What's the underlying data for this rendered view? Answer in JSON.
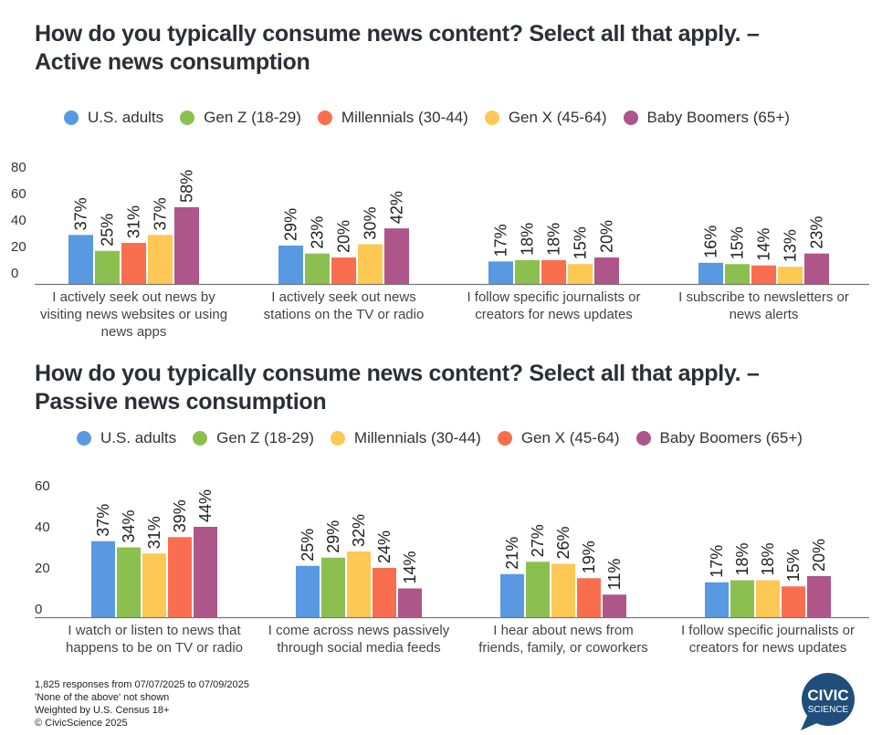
{
  "chart_data": [
    {
      "type": "bar",
      "title": "How do you typically consume news content? Select all that apply. – Active news consumption",
      "title_lines": [
        "How do you typically consume news content? Select all that apply. –",
        "Active news consumption"
      ],
      "xlabel": "",
      "ylabel": "",
      "ylim": [
        0,
        80
      ],
      "yticks": [
        0,
        20,
        40,
        60,
        80
      ],
      "grid": false,
      "legend_position": "top-center",
      "categories": [
        [
          "I actively seek out news by",
          "visiting news websites or using",
          "news apps"
        ],
        [
          "I actively seek out news",
          "stations on the TV or radio"
        ],
        [
          "I follow specific journalists or",
          "creators for news updates"
        ],
        [
          "I subscribe to newsletters or",
          "news alerts"
        ]
      ],
      "series": [
        {
          "name": "U.S. adults",
          "color": "#5899e2",
          "values": [
            37,
            29,
            17,
            16
          ]
        },
        {
          "name": "Gen Z (18-29)",
          "color": "#8bc050",
          "values": [
            25,
            23,
            18,
            15
          ]
        },
        {
          "name": "Millennials (30-44)",
          "color": "#fa6e50",
          "values": [
            31,
            20,
            18,
            14
          ]
        },
        {
          "name": "Gen X (45-64)",
          "color": "#fdc853",
          "values": [
            37,
            30,
            15,
            13
          ]
        },
        {
          "name": "Baby Boomers (65+)",
          "color": "#ae5589",
          "values": [
            58,
            42,
            20,
            23
          ]
        }
      ],
      "value_suffix": "%"
    },
    {
      "type": "bar",
      "title": "How do you typically consume news content? Select all that apply. – Passive news consumption",
      "title_lines": [
        "How do you typically consume news content? Select all that apply. –",
        "Passive news consumption"
      ],
      "xlabel": "",
      "ylabel": "",
      "ylim": [
        0,
        60
      ],
      "yticks": [
        0,
        20,
        40,
        60
      ],
      "grid": false,
      "legend_position": "top-center",
      "categories": [
        [
          "I watch or listen to news that",
          "happens to be on TV or radio"
        ],
        [
          "I come across news passively",
          "through social media feeds"
        ],
        [
          "I hear about news from",
          "friends, family, or coworkers"
        ],
        [
          "I follow specific journalists or",
          "creators for news updates"
        ]
      ],
      "series": [
        {
          "name": "U.S. adults",
          "color": "#5899e2",
          "values": [
            37,
            25,
            21,
            17
          ]
        },
        {
          "name": "Gen Z (18-29)",
          "color": "#8bc050",
          "values": [
            34,
            29,
            27,
            18
          ]
        },
        {
          "name": "Millennials (30-44)",
          "color": "#fdc853",
          "values": [
            31,
            32,
            26,
            18
          ]
        },
        {
          "name": "Gen X (45-64)",
          "color": "#fa6e50",
          "values": [
            39,
            24,
            19,
            15
          ]
        },
        {
          "name": "Baby Boomers (65+)",
          "color": "#ae5589",
          "values": [
            44,
            14,
            11,
            20
          ]
        }
      ],
      "value_suffix": "%"
    }
  ],
  "footer": {
    "lines": [
      "1,825 responses from 07/07/2025 to 07/09/2025",
      "'None of the above' not shown",
      "Weighted by U.S. Census 18+",
      "© CivicScience 2025"
    ]
  },
  "logo": {
    "line1": "CIVIC",
    "line2": "SCIENCE",
    "color": "#1f4e7a"
  }
}
